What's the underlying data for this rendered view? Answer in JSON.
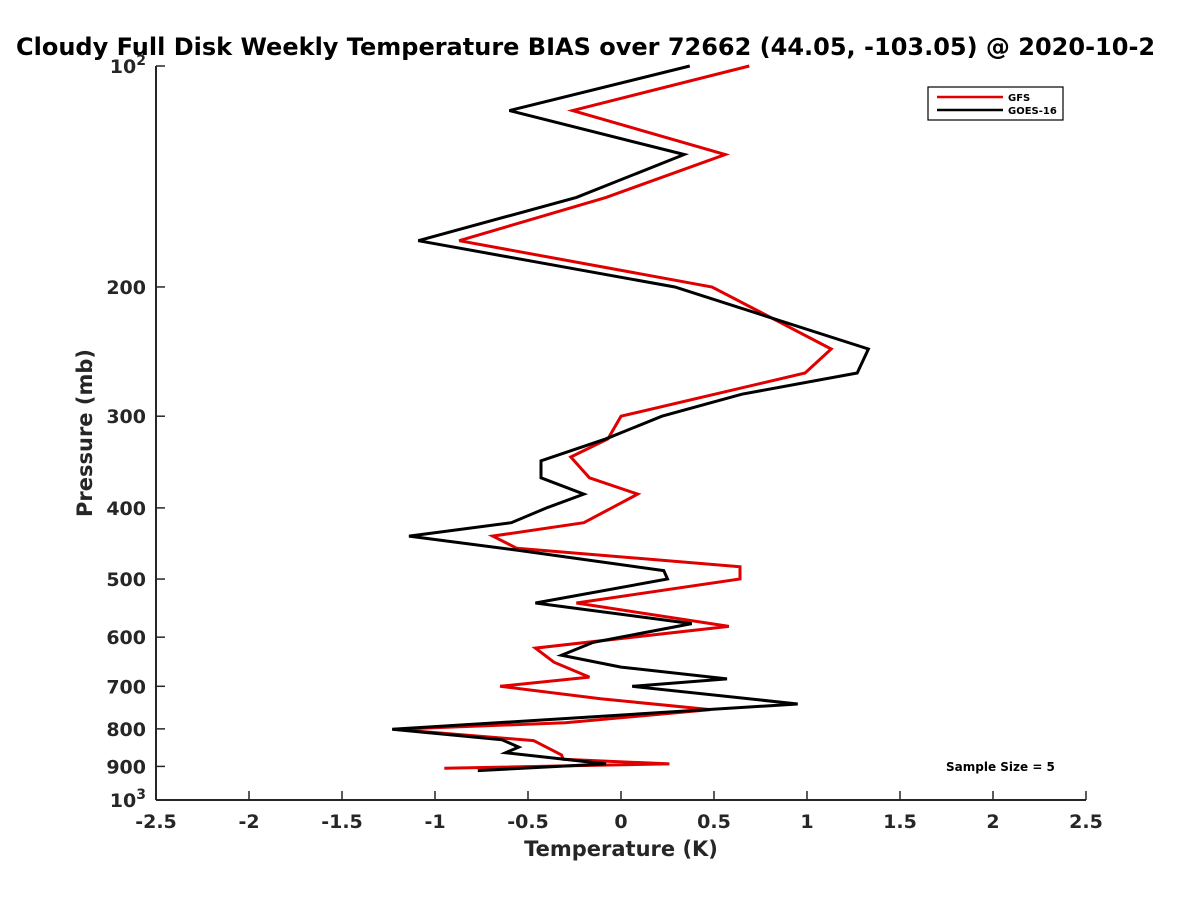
{
  "chart_data": {
    "type": "line",
    "title": "Cloudy Full Disk Weekly Temperature BIAS over 72662 (44.05, -103.05) @ 2020-10-2",
    "xlabel": "Temperature (K)",
    "ylabel": "Pressure (mb)",
    "xlim": [
      -2.5,
      2.5
    ],
    "ylim": [
      100,
      1000
    ],
    "y_scale": "log",
    "y_reversed": true,
    "grid": false,
    "legend_position": "top-right",
    "x_ticks": [
      "-2.5",
      "-2",
      "-1.5",
      "-1",
      "-0.5",
      "0",
      "0.5",
      "1",
      "1.5",
      "2",
      "2.5"
    ],
    "x_tick_values": [
      -2.5,
      -2,
      -1.5,
      -1,
      -0.5,
      0,
      0.5,
      1,
      1.5,
      2,
      2.5
    ],
    "y_ticks": [
      {
        "value": 100,
        "base": "10",
        "exp": "2"
      },
      {
        "value": 200,
        "label": "200"
      },
      {
        "value": 300,
        "label": "300"
      },
      {
        "value": 400,
        "label": "400"
      },
      {
        "value": 500,
        "label": "500"
      },
      {
        "value": 600,
        "label": "600"
      },
      {
        "value": 700,
        "label": "700"
      },
      {
        "value": 800,
        "label": "800"
      },
      {
        "value": 900,
        "label": "900"
      },
      {
        "value": 1000,
        "base": "10",
        "exp": "3"
      }
    ],
    "annotation": "Sample Size = 5",
    "series": [
      {
        "name": "GFS",
        "color": "#e00000",
        "points": [
          {
            "x": 0.69,
            "y": 100
          },
          {
            "x": -0.26,
            "y": 115
          },
          {
            "x": 0.56,
            "y": 132
          },
          {
            "x": -0.08,
            "y": 151
          },
          {
            "x": -0.87,
            "y": 173
          },
          {
            "x": 0.49,
            "y": 200
          },
          {
            "x": 1.13,
            "y": 243
          },
          {
            "x": 0.99,
            "y": 262
          },
          {
            "x": 0.0,
            "y": 300
          },
          {
            "x": -0.07,
            "y": 322
          },
          {
            "x": -0.27,
            "y": 341
          },
          {
            "x": -0.17,
            "y": 364
          },
          {
            "x": 0.09,
            "y": 383
          },
          {
            "x": -0.05,
            "y": 400
          },
          {
            "x": -0.2,
            "y": 419
          },
          {
            "x": -0.69,
            "y": 437
          },
          {
            "x": -0.56,
            "y": 454
          },
          {
            "x": 0.64,
            "y": 481
          },
          {
            "x": 0.64,
            "y": 500
          },
          {
            "x": -0.24,
            "y": 539
          },
          {
            "x": 0.58,
            "y": 580
          },
          {
            "x": -0.46,
            "y": 621
          },
          {
            "x": -0.36,
            "y": 649
          },
          {
            "x": -0.17,
            "y": 680
          },
          {
            "x": -0.65,
            "y": 700
          },
          {
            "x": -0.11,
            "y": 728
          },
          {
            "x": 0.48,
            "y": 753
          },
          {
            "x": -0.3,
            "y": 785
          },
          {
            "x": -1.22,
            "y": 801
          },
          {
            "x": -0.47,
            "y": 830
          },
          {
            "x": -0.32,
            "y": 868
          },
          {
            "x": -0.31,
            "y": 880
          },
          {
            "x": 0.26,
            "y": 893
          },
          {
            "x": -0.95,
            "y": 905
          }
        ]
      },
      {
        "name": "GOES-16",
        "color": "#000000",
        "points": [
          {
            "x": 0.37,
            "y": 100
          },
          {
            "x": -0.6,
            "y": 115
          },
          {
            "x": 0.34,
            "y": 132
          },
          {
            "x": -0.24,
            "y": 151
          },
          {
            "x": -1.09,
            "y": 173
          },
          {
            "x": 0.29,
            "y": 200
          },
          {
            "x": 1.33,
            "y": 243
          },
          {
            "x": 1.27,
            "y": 262
          },
          {
            "x": 0.65,
            "y": 280
          },
          {
            "x": 0.22,
            "y": 300
          },
          {
            "x": -0.08,
            "y": 322
          },
          {
            "x": -0.43,
            "y": 345
          },
          {
            "x": -0.43,
            "y": 364
          },
          {
            "x": -0.2,
            "y": 383
          },
          {
            "x": -0.4,
            "y": 400
          },
          {
            "x": -0.59,
            "y": 419
          },
          {
            "x": -1.14,
            "y": 437
          },
          {
            "x": -0.55,
            "y": 457
          },
          {
            "x": 0.23,
            "y": 487
          },
          {
            "x": 0.25,
            "y": 500
          },
          {
            "x": -0.46,
            "y": 539
          },
          {
            "x": 0.38,
            "y": 575
          },
          {
            "x": -0.15,
            "y": 610
          },
          {
            "x": -0.32,
            "y": 635
          },
          {
            "x": 0.0,
            "y": 659
          },
          {
            "x": 0.57,
            "y": 684
          },
          {
            "x": 0.06,
            "y": 700
          },
          {
            "x": 0.95,
            "y": 740
          },
          {
            "x": -1.23,
            "y": 801
          },
          {
            "x": -0.64,
            "y": 828
          },
          {
            "x": -0.55,
            "y": 847
          },
          {
            "x": -0.62,
            "y": 862
          },
          {
            "x": -0.08,
            "y": 893
          },
          {
            "x": -0.77,
            "y": 912
          }
        ]
      }
    ]
  }
}
